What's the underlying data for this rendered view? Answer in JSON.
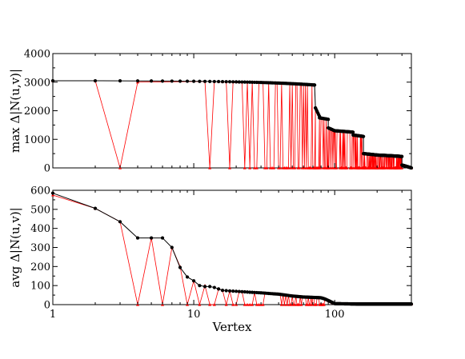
{
  "chart_data": [
    {
      "type": "line",
      "panel": "top",
      "ylabel": "max Δ|N(u,v)|",
      "xlabel": "",
      "xscale": "log",
      "xlim": [
        1,
        350
      ],
      "ylim": [
        0,
        4000
      ],
      "yticks": [
        0,
        1000,
        2000,
        3000,
        4000
      ],
      "xticks": [
        1,
        10,
        100
      ],
      "xtick_labels": [
        "",
        "",
        ""
      ],
      "grid": false,
      "colors": {
        "black_series": "#000000",
        "red_series": "#ff0000"
      },
      "black_segments": [
        {
          "x_from": 1,
          "x_to": 72,
          "y_from": 3050,
          "y_to": 2900
        },
        {
          "x_from": 72,
          "x_to": 73,
          "y_from": 2900,
          "y_to": 2100
        },
        {
          "x_from": 73,
          "x_to": 78,
          "y_from": 2100,
          "y_to": 1800
        },
        {
          "x_from": 78,
          "x_to": 90,
          "y_from": 1750,
          "y_to": 1700
        },
        {
          "x_from": 90,
          "x_to": 100,
          "y_from": 1400,
          "y_to": 1300
        },
        {
          "x_from": 100,
          "x_to": 135,
          "y_from": 1300,
          "y_to": 1250
        },
        {
          "x_from": 135,
          "x_to": 160,
          "y_from": 1150,
          "y_to": 1100
        },
        {
          "x_from": 160,
          "x_to": 200,
          "y_from": 500,
          "y_to": 450
        },
        {
          "x_from": 200,
          "x_to": 300,
          "y_from": 450,
          "y_to": 400
        },
        {
          "x_from": 300,
          "x_to": 350,
          "y_from": 100,
          "y_to": 0
        }
      ],
      "red_spike_band": {
        "x_from": 12,
        "x_to": 300,
        "y_low": 0
      },
      "red_series_early": {
        "x": [
          1,
          2,
          3,
          4
        ],
        "y": [
          3050,
          3050,
          0,
          3000
        ]
      }
    },
    {
      "type": "line",
      "panel": "bottom",
      "ylabel": "avg Δ|N(u,v)|",
      "xlabel": "Vertex",
      "xscale": "log",
      "xlim": [
        1,
        350
      ],
      "ylim": [
        0,
        600
      ],
      "yticks": [
        0,
        100,
        200,
        300,
        400,
        500,
        600
      ],
      "xticks": [
        1,
        10,
        100
      ],
      "xtick_labels": [
        "1",
        "10",
        "100"
      ],
      "grid": false,
      "colors": {
        "black_series": "#000000",
        "red_series": "#ff0000"
      },
      "black_series": {
        "x": [
          1,
          2,
          3,
          4,
          5,
          6,
          7,
          8,
          9,
          10,
          11,
          12,
          13,
          14,
          16,
          18,
          20,
          25,
          30,
          35,
          40,
          50,
          60,
          70,
          80,
          85,
          100,
          150,
          200,
          350
        ],
        "y": [
          585,
          505,
          435,
          350,
          350,
          350,
          300,
          195,
          145,
          125,
          100,
          95,
          95,
          90,
          75,
          72,
          70,
          65,
          62,
          58,
          55,
          45,
          40,
          38,
          36,
          30,
          5,
          3,
          3,
          3
        ]
      },
      "red_series_early": {
        "x": [
          1,
          2,
          3,
          4,
          5,
          6,
          7,
          8,
          9,
          10,
          11,
          12
        ],
        "y": [
          575,
          505,
          435,
          0,
          350,
          0,
          300,
          200,
          0,
          125,
          0,
          100
        ]
      },
      "red_spike_band": {
        "x_from": 12,
        "x_to": 85,
        "y_low": 0
      }
    }
  ]
}
